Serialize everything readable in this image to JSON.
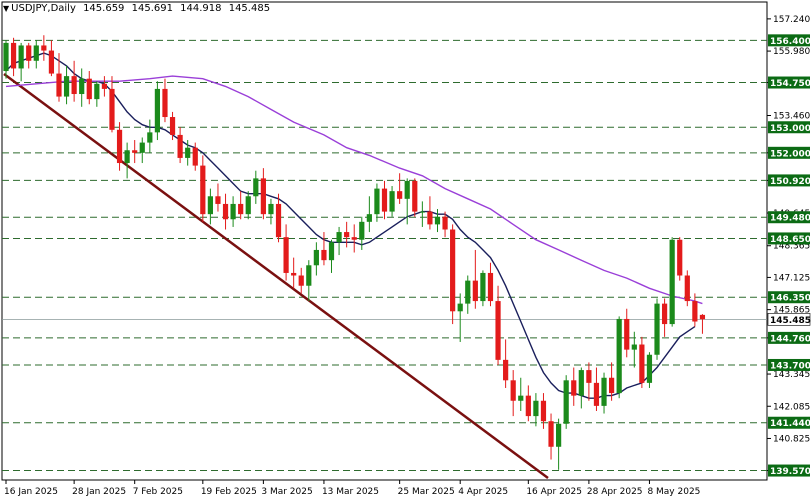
{
  "header": {
    "symbol_timeframe": "USDJPY,Daily",
    "open": "145.659",
    "high": "145.691",
    "low": "144.918",
    "close": "145.485"
  },
  "colors": {
    "bull": "#1b8a1b",
    "bear": "#e31b1b",
    "ma_fast": "#1a1f5c",
    "ma_slow": "#9a3fd8",
    "trendline": "#7a1010",
    "level_line": "#2e6b2e",
    "level_label_bg": "#0b6b14",
    "current_label_bg": "#ffffff",
    "grid": "#000000"
  },
  "chart_data": {
    "type": "candlestick",
    "symbol": "USDJPY",
    "timeframe": "Daily",
    "ylim": [
      139.2,
      157.9
    ],
    "x_tick_labels": [
      {
        "i": 0,
        "label": "16 Jan 2025"
      },
      {
        "i": 9,
        "label": "28 Jan 2025"
      },
      {
        "i": 17,
        "label": "7 Feb 2025"
      },
      {
        "i": 26,
        "label": "19 Feb 2025"
      },
      {
        "i": 34,
        "label": "3 Mar 2025"
      },
      {
        "i": 42,
        "label": "13 Mar 2025"
      },
      {
        "i": 52,
        "label": "25 Mar 2025"
      },
      {
        "i": 60,
        "label": "4 Apr 2025"
      },
      {
        "i": 69,
        "label": "16 Apr 2025"
      },
      {
        "i": 77,
        "label": "28 Apr 2025"
      },
      {
        "i": 85,
        "label": "8 May 2025"
      }
    ],
    "y_tick_labels": [
      "157.240",
      "155.980",
      "154.750",
      "153.460",
      "152.000",
      "150.920",
      "149.645",
      "148.365",
      "147.125",
      "145.865",
      "144.760",
      "143.345",
      "142.085",
      "140.825",
      "139.570"
    ],
    "horizontal_levels": [
      "156.400",
      "154.750",
      "153.000",
      "152.000",
      "150.920",
      "149.480",
      "148.650",
      "146.350",
      "144.760",
      "143.700",
      "141.440",
      "139.570"
    ],
    "current_price": "145.485",
    "candles": [
      {
        "o": 155.2,
        "h": 156.4,
        "l": 154.9,
        "c": 156.3
      },
      {
        "o": 156.3,
        "h": 156.5,
        "l": 155.0,
        "c": 155.3
      },
      {
        "o": 155.3,
        "h": 156.3,
        "l": 154.8,
        "c": 156.2
      },
      {
        "o": 156.2,
        "h": 156.3,
        "l": 155.3,
        "c": 155.6
      },
      {
        "o": 155.6,
        "h": 156.4,
        "l": 155.3,
        "c": 156.2
      },
      {
        "o": 156.2,
        "h": 156.6,
        "l": 155.6,
        "c": 156.0
      },
      {
        "o": 156.0,
        "h": 156.4,
        "l": 155.0,
        "c": 155.1
      },
      {
        "o": 155.1,
        "h": 155.9,
        "l": 154.0,
        "c": 154.2
      },
      {
        "o": 154.2,
        "h": 155.4,
        "l": 153.9,
        "c": 155.0
      },
      {
        "o": 155.0,
        "h": 155.6,
        "l": 154.0,
        "c": 154.3
      },
      {
        "o": 154.3,
        "h": 155.3,
        "l": 153.8,
        "c": 154.9
      },
      {
        "o": 154.9,
        "h": 155.2,
        "l": 153.9,
        "c": 154.1
      },
      {
        "o": 154.1,
        "h": 154.8,
        "l": 153.8,
        "c": 154.7
      },
      {
        "o": 154.7,
        "h": 155.0,
        "l": 154.2,
        "c": 154.5
      },
      {
        "o": 154.5,
        "h": 155.0,
        "l": 152.8,
        "c": 152.9
      },
      {
        "o": 152.9,
        "h": 153.2,
        "l": 151.3,
        "c": 151.6
      },
      {
        "o": 151.6,
        "h": 152.4,
        "l": 151.0,
        "c": 152.1
      },
      {
        "o": 152.1,
        "h": 152.5,
        "l": 151.6,
        "c": 152.0
      },
      {
        "o": 152.0,
        "h": 152.6,
        "l": 151.6,
        "c": 152.4
      },
      {
        "o": 152.4,
        "h": 153.3,
        "l": 152.0,
        "c": 152.8
      },
      {
        "o": 152.8,
        "h": 154.8,
        "l": 152.5,
        "c": 154.5
      },
      {
        "o": 154.5,
        "h": 154.9,
        "l": 153.2,
        "c": 153.4
      },
      {
        "o": 153.4,
        "h": 153.6,
        "l": 152.5,
        "c": 152.7
      },
      {
        "o": 152.7,
        "h": 153.0,
        "l": 151.6,
        "c": 151.8
      },
      {
        "o": 151.8,
        "h": 152.5,
        "l": 151.5,
        "c": 152.2
      },
      {
        "o": 152.2,
        "h": 152.4,
        "l": 151.3,
        "c": 151.5
      },
      {
        "o": 151.5,
        "h": 151.9,
        "l": 149.3,
        "c": 149.6
      },
      {
        "o": 149.6,
        "h": 150.6,
        "l": 149.2,
        "c": 150.3
      },
      {
        "o": 150.3,
        "h": 150.8,
        "l": 149.7,
        "c": 150.0
      },
      {
        "o": 150.0,
        "h": 150.4,
        "l": 149.0,
        "c": 149.4
      },
      {
        "o": 149.4,
        "h": 150.3,
        "l": 149.1,
        "c": 150.0
      },
      {
        "o": 150.0,
        "h": 150.5,
        "l": 149.4,
        "c": 149.6
      },
      {
        "o": 149.6,
        "h": 150.5,
        "l": 149.4,
        "c": 150.3
      },
      {
        "o": 150.3,
        "h": 151.3,
        "l": 150.0,
        "c": 151.0
      },
      {
        "o": 151.0,
        "h": 151.4,
        "l": 149.4,
        "c": 149.6
      },
      {
        "o": 149.6,
        "h": 150.2,
        "l": 149.2,
        "c": 150.0
      },
      {
        "o": 150.0,
        "h": 150.4,
        "l": 148.5,
        "c": 148.7
      },
      {
        "o": 148.7,
        "h": 149.2,
        "l": 147.0,
        "c": 147.3
      },
      {
        "o": 147.3,
        "h": 147.9,
        "l": 146.7,
        "c": 147.2
      },
      {
        "o": 147.2,
        "h": 147.5,
        "l": 146.5,
        "c": 146.8
      },
      {
        "o": 146.8,
        "h": 147.8,
        "l": 146.2,
        "c": 147.6
      },
      {
        "o": 147.6,
        "h": 148.5,
        "l": 147.2,
        "c": 148.2
      },
      {
        "o": 148.2,
        "h": 148.9,
        "l": 147.6,
        "c": 147.8
      },
      {
        "o": 147.8,
        "h": 148.6,
        "l": 147.3,
        "c": 148.5
      },
      {
        "o": 148.5,
        "h": 149.1,
        "l": 148.0,
        "c": 148.9
      },
      {
        "o": 148.9,
        "h": 149.3,
        "l": 148.3,
        "c": 148.7
      },
      {
        "o": 148.7,
        "h": 149.2,
        "l": 148.1,
        "c": 148.6
      },
      {
        "o": 148.6,
        "h": 149.5,
        "l": 148.2,
        "c": 149.3
      },
      {
        "o": 149.3,
        "h": 150.3,
        "l": 148.9,
        "c": 149.6
      },
      {
        "o": 149.6,
        "h": 150.8,
        "l": 149.3,
        "c": 150.6
      },
      {
        "o": 150.6,
        "h": 150.9,
        "l": 149.4,
        "c": 149.7
      },
      {
        "o": 149.7,
        "h": 150.7,
        "l": 149.5,
        "c": 150.5
      },
      {
        "o": 150.5,
        "h": 151.2,
        "l": 150.0,
        "c": 150.2
      },
      {
        "o": 150.2,
        "h": 151.0,
        "l": 149.2,
        "c": 150.9
      },
      {
        "o": 150.9,
        "h": 151.0,
        "l": 149.5,
        "c": 149.7
      },
      {
        "o": 149.7,
        "h": 150.1,
        "l": 149.1,
        "c": 149.7
      },
      {
        "o": 149.7,
        "h": 150.3,
        "l": 149.0,
        "c": 149.2
      },
      {
        "o": 149.2,
        "h": 149.8,
        "l": 148.9,
        "c": 149.5
      },
      {
        "o": 149.5,
        "h": 149.7,
        "l": 148.7,
        "c": 149.0
      },
      {
        "o": 149.0,
        "h": 149.2,
        "l": 145.3,
        "c": 145.8
      },
      {
        "o": 145.8,
        "h": 146.5,
        "l": 144.6,
        "c": 146.1
      },
      {
        "o": 146.1,
        "h": 147.2,
        "l": 145.7,
        "c": 147.0
      },
      {
        "o": 147.0,
        "h": 148.2,
        "l": 145.9,
        "c": 146.2
      },
      {
        "o": 146.2,
        "h": 147.4,
        "l": 146.0,
        "c": 147.3
      },
      {
        "o": 147.3,
        "h": 147.7,
        "l": 146.0,
        "c": 146.2
      },
      {
        "o": 146.2,
        "h": 146.8,
        "l": 143.7,
        "c": 143.9
      },
      {
        "o": 143.9,
        "h": 144.7,
        "l": 142.8,
        "c": 143.1
      },
      {
        "o": 143.1,
        "h": 143.5,
        "l": 141.7,
        "c": 142.3
      },
      {
        "o": 142.3,
        "h": 143.2,
        "l": 141.9,
        "c": 142.5
      },
      {
        "o": 142.5,
        "h": 142.9,
        "l": 141.5,
        "c": 141.7
      },
      {
        "o": 141.7,
        "h": 142.6,
        "l": 141.3,
        "c": 142.3
      },
      {
        "o": 142.3,
        "h": 142.6,
        "l": 141.2,
        "c": 141.5
      },
      {
        "o": 141.5,
        "h": 141.8,
        "l": 140.0,
        "c": 140.5
      },
      {
        "o": 140.5,
        "h": 141.6,
        "l": 139.6,
        "c": 141.4
      },
      {
        "o": 141.4,
        "h": 143.3,
        "l": 141.2,
        "c": 143.1
      },
      {
        "o": 143.1,
        "h": 143.6,
        "l": 142.1,
        "c": 142.5
      },
      {
        "o": 142.5,
        "h": 143.6,
        "l": 142.0,
        "c": 143.5
      },
      {
        "o": 143.5,
        "h": 143.8,
        "l": 142.3,
        "c": 143.0
      },
      {
        "o": 143.0,
        "h": 143.6,
        "l": 141.9,
        "c": 142.1
      },
      {
        "o": 142.1,
        "h": 143.4,
        "l": 141.8,
        "c": 143.2
      },
      {
        "o": 143.2,
        "h": 143.8,
        "l": 142.3,
        "c": 142.6
      },
      {
        "o": 142.6,
        "h": 145.6,
        "l": 142.4,
        "c": 145.5
      },
      {
        "o": 145.5,
        "h": 145.9,
        "l": 144.0,
        "c": 144.3
      },
      {
        "o": 144.3,
        "h": 145.0,
        "l": 143.6,
        "c": 144.5
      },
      {
        "o": 144.5,
        "h": 144.8,
        "l": 142.8,
        "c": 143.0
      },
      {
        "o": 143.0,
        "h": 144.2,
        "l": 142.8,
        "c": 144.1
      },
      {
        "o": 144.1,
        "h": 146.3,
        "l": 143.9,
        "c": 146.1
      },
      {
        "o": 146.1,
        "h": 146.3,
        "l": 144.8,
        "c": 145.3
      },
      {
        "o": 145.3,
        "h": 148.7,
        "l": 145.2,
        "c": 148.6
      },
      {
        "o": 148.6,
        "h": 148.7,
        "l": 147.0,
        "c": 147.2
      },
      {
        "o": 147.2,
        "h": 147.4,
        "l": 146.0,
        "c": 146.2
      },
      {
        "o": 146.2,
        "h": 146.5,
        "l": 145.2,
        "c": 145.4
      },
      {
        "o": 145.66,
        "h": 145.69,
        "l": 144.92,
        "c": 145.49
      }
    ],
    "ma_fast": [
      155.2,
      155.5,
      155.6,
      155.7,
      155.8,
      155.9,
      155.8,
      155.6,
      155.4,
      155.1,
      154.9,
      154.8,
      154.8,
      154.7,
      154.4,
      154.0,
      153.6,
      153.3,
      153.1,
      153.0,
      153.0,
      152.9,
      152.7,
      152.5,
      152.3,
      152.2,
      152.0,
      151.7,
      151.4,
      151.1,
      150.8,
      150.5,
      150.4,
      150.4,
      150.4,
      150.3,
      150.2,
      150.0,
      149.7,
      149.4,
      149.1,
      148.8,
      148.6,
      148.5,
      148.5,
      148.5,
      148.5,
      148.4,
      148.5,
      148.7,
      148.9,
      149.1,
      149.3,
      149.5,
      149.6,
      149.7,
      149.7,
      149.6,
      149.6,
      149.4,
      149.0,
      148.7,
      148.5,
      148.2,
      147.9,
      147.4,
      146.8,
      146.1,
      145.4,
      144.7,
      144.0,
      143.4,
      143.0,
      142.7,
      142.6,
      142.6,
      142.5,
      142.4,
      142.4,
      142.5,
      142.5,
      142.6,
      142.8,
      142.9,
      143.0,
      143.3,
      143.6,
      144.0,
      144.4,
      144.8,
      145.0,
      145.2
    ]
  }
}
